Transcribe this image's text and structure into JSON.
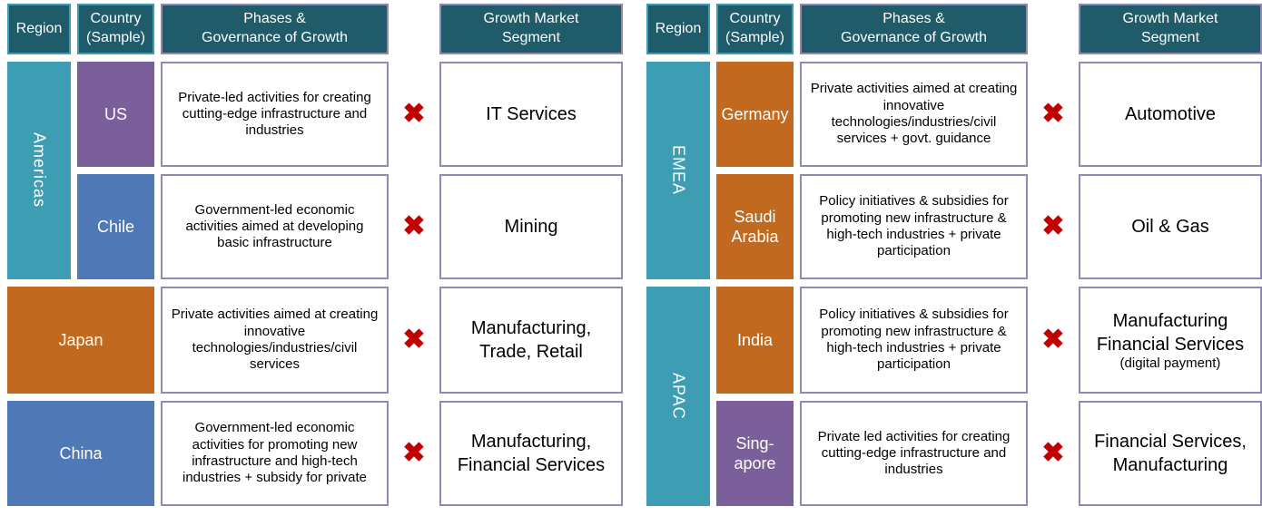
{
  "colors": {
    "header_bg": "#1F5B68",
    "header_border_teal": "#3D9DB3",
    "header_border_purple": "#9489B4",
    "region_teal": "#3D9DB3",
    "purple": "#7B5F9B",
    "blue": "#4E79B6",
    "orange": "#C1691E",
    "box_border": "#9489B4",
    "x_red": "#C00000"
  },
  "x_mark": "✖",
  "tables": [
    {
      "name": "left",
      "headers": {
        "region": "Region",
        "country": "Country\n(Sample)",
        "phases": "Phases &\nGovernance of Growth",
        "growth": "Growth Market\nSegment"
      },
      "regions": [
        {
          "label": "Americas"
        }
      ],
      "rows": [
        {
          "country": "US",
          "phases": "Private-led activities for creating cutting-edge infrastructure and industries",
          "growth": "IT Services"
        },
        {
          "country": "Chile",
          "phases": "Government-led economic activities aimed at developing basic infrastructure",
          "growth": "Mining"
        },
        {
          "country": "Japan",
          "phases": "Private activities aimed at creating innovative technologies/industries/civil services",
          "growth": "Manufacturing,\nTrade, Retail"
        },
        {
          "country": "China",
          "phases": "Government-led economic activities for promoting new infrastructure and high-tech industries + subsidy for private",
          "growth": "Manufacturing,\nFinancial Services"
        }
      ]
    },
    {
      "name": "right",
      "headers": {
        "region": "Region",
        "country": "Country\n(Sample)",
        "phases": "Phases &\nGovernance of Growth",
        "growth": "Growth Market\nSegment"
      },
      "regions": [
        {
          "label": "EMEA"
        },
        {
          "label": "APAC"
        }
      ],
      "rows": [
        {
          "country": "Germany",
          "phases": "Private activities aimed at creating innovative technologies/industries/civil services + govt. guidance",
          "growth": "Automotive"
        },
        {
          "country": "Saudi\nArabia",
          "phases": "Policy initiatives & subsidies for promoting new infrastructure & high-tech industries + private participation",
          "growth": "Oil & Gas"
        },
        {
          "country": "India",
          "phases": "Policy initiatives & subsidies for promoting new infrastructure & high-tech industries + private participation",
          "growth": "Manufacturing\nFinancial Services",
          "growth_note": "(digital payment)"
        },
        {
          "country": "Sing-\napore",
          "phases": "Private led activities for creating cutting-edge infrastructure and industries",
          "growth": "Financial Services,\nManufacturing"
        }
      ]
    }
  ]
}
